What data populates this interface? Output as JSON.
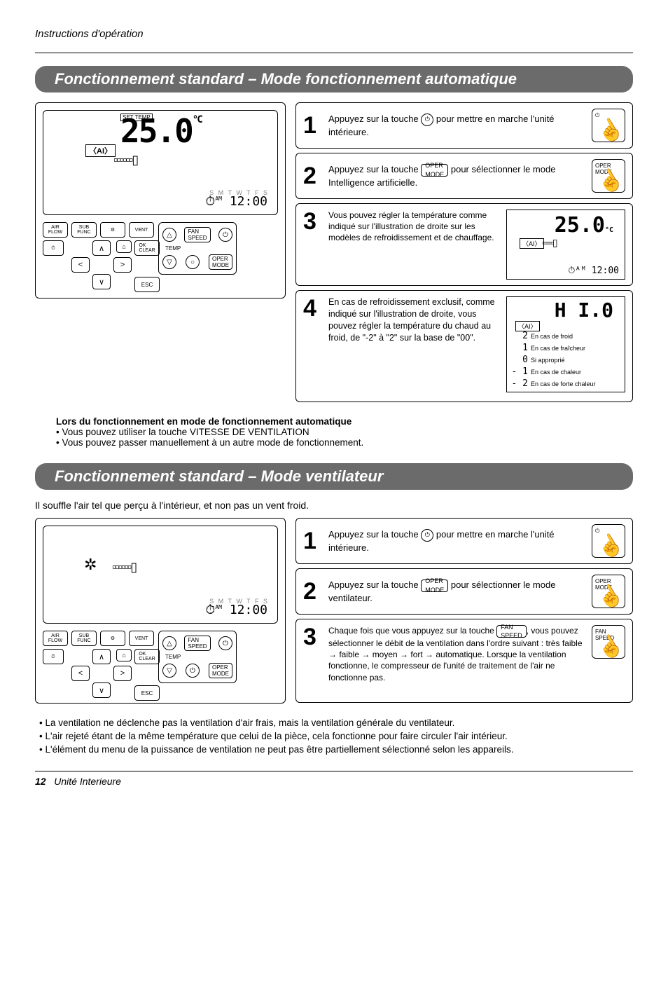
{
  "header": "Instructions d'opération",
  "section1_title": "Fonctionnement standard – Mode fonctionnement automatique",
  "section2_title": "Fonctionnement standard – Mode ventilateur",
  "intro2": "Il souffle l'air tel que perçu à l'intérieur, et non pas un vent froid.",
  "remote1": {
    "temp": "25.0",
    "unit": "°C",
    "ai": "AI",
    "bars": "▫▫▫▫▫▫▯",
    "time": "12:00",
    "am": "AM",
    "days": "S M T W T F S",
    "btn_air": "AIR\nFLOW",
    "btn_sub": "SUB\nFUNC",
    "btn_set": "⚙",
    "btn_vent": "VENT",
    "btn_timer": "⏱",
    "btn_home": "⌂",
    "btn_ok": "OK\nCLEAR",
    "btn_esc": "ESC",
    "fan_speed": "FAN\nSPEED",
    "temp_lbl": "TEMP",
    "oper_mode": "OPER\nMODE"
  },
  "steps1": {
    "s1_pre": "Appuyez sur la touche ",
    "s1_post": " pour mettre en marche l'unité intérieure.",
    "s2_pre": "Appuyez sur la touche ",
    "s2_post": " pour sélectionner le mode Intelligence artificielle.",
    "s3": "Vous pouvez régler la température comme indiqué sur l'illustration de droite sur les modèles de refroidissement et de chauffage.",
    "s4": "En cas de refroidissement exclusif, comme indiqué sur l'illustration de droite, vous pouvez régler la température du chaud au froid, de \"-2\" à \"2\" sur la base de \"00\".",
    "n1": "1",
    "n2": "2",
    "n3": "3",
    "n4": "4"
  },
  "scale": {
    "bigH": "H I.0",
    "ai": "AI",
    "r1s": "2",
    "r1t": "En cas de froid",
    "r2s": "1",
    "r2t": "En cas de fraîcheur",
    "r3s": "0",
    "r3t": "Si approprié",
    "r4s": "- 1",
    "r4t": "En cas de chaleur",
    "r5s": "- 2",
    "r5t": "En cas de forte chaleur"
  },
  "mini": {
    "temp": "25.0",
    "ai": "AI",
    "time": "12:00"
  },
  "note1": {
    "title": "Lors du fonctionnement en mode de fonctionnement automatique",
    "l1": "• Vous pouvez utiliser la touche VITESSE DE VENTILATION",
    "l2": "• Vous pouvez passer manuellement à un autre mode de fonctionnement."
  },
  "steps2": {
    "s1_pre": "Appuyez sur la touche ",
    "s1_post": " pour mettre en marche l'unité intérieure.",
    "s2_pre": "Appuyez sur la touche ",
    "s2_post": " pour sélectionner le mode ventilateur.",
    "s3_pre": "Chaque fois que vous appuyez sur la touche ",
    "s3_post": ", vous pouvez sélectionner le débit de la ventilation dans l'ordre suivant : très faible → faible → moyen → fort → automatique. Lorsque la ventilation fonctionne, le compresseur de l'unité de traitement de l'air ne fonctionne pas.",
    "n1": "1",
    "n2": "2",
    "n3": "3"
  },
  "icons": {
    "power": "⏻",
    "oper": "OPER\nMODE",
    "fan": "FAN\nSPEED"
  },
  "bullets2": {
    "b1": "• La ventilation ne déclenche pas la ventilation d'air frais, mais la ventilation générale du ventilateur.",
    "b2": "• L'air rejeté étant de la même température que celui de la pièce, cela fonctionne pour faire circuler l'air intérieur.",
    "b3": "• L'élément du menu de la puissance de ventilation ne peut pas être partiellement sélectionné selon les appareils."
  },
  "footer": {
    "page": "12",
    "title": "Unité Interieure"
  }
}
